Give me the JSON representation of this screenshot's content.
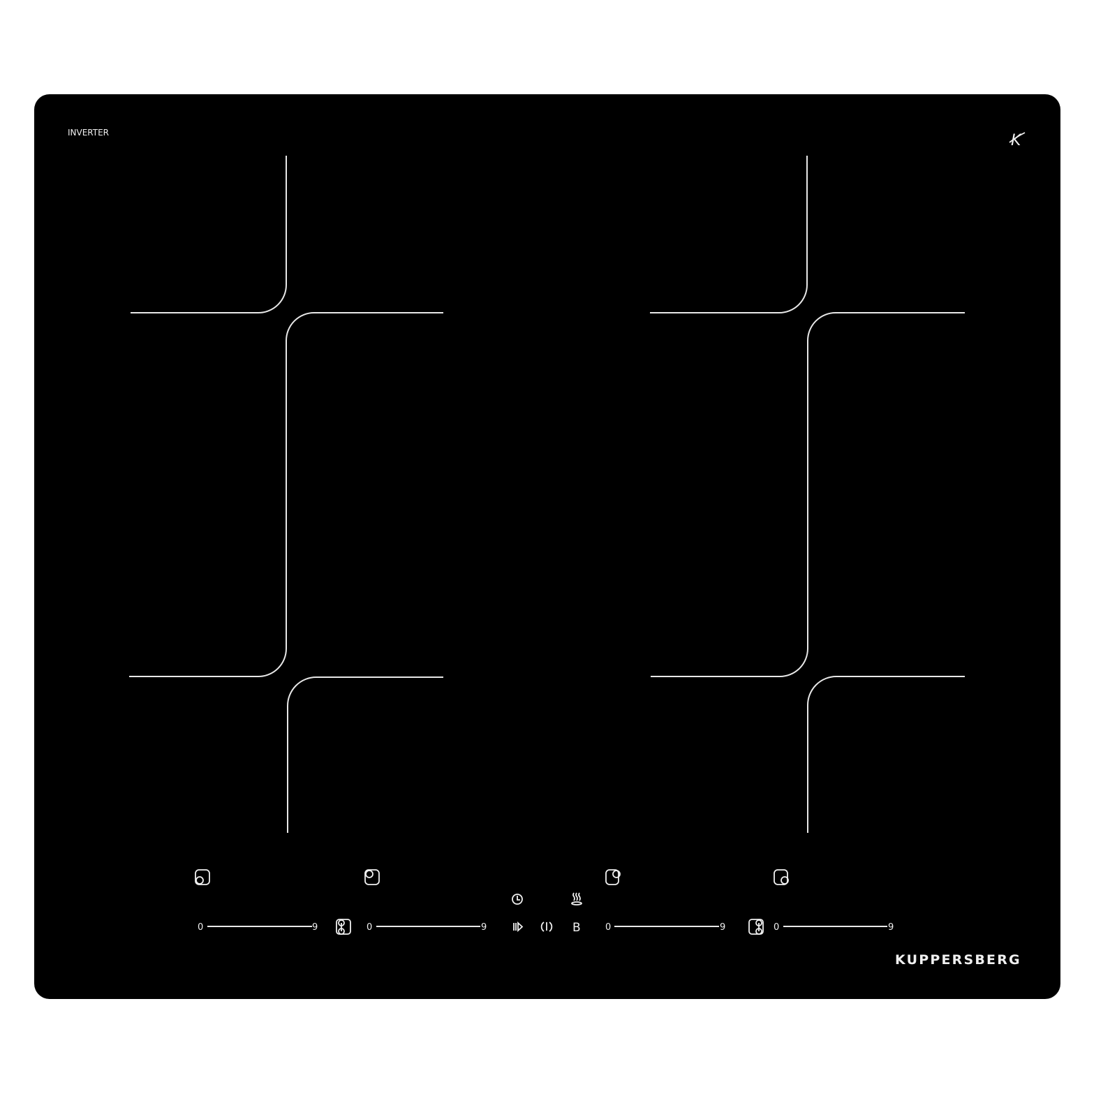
{
  "product": {
    "badge": "INVERTER",
    "brand": "KUPPERSBERG",
    "logo_letter": "K",
    "glass_color": "#000000",
    "line_color": "#e8e8e8"
  },
  "controls": {
    "zone_icons": [
      "zone-rear-left-icon",
      "zone-front-left-icon",
      "zone-rear-right-icon",
      "zone-front-right-icon"
    ],
    "sliders": [
      {
        "min_label": "0",
        "max_label": "9"
      },
      {
        "min_label": "0",
        "max_label": "9"
      },
      {
        "min_label": "0",
        "max_label": "9"
      },
      {
        "min_label": "0",
        "max_label": "9"
      }
    ],
    "bridge_icons": [
      "flex-zone-left-icon",
      "flex-zone-right-icon"
    ],
    "center": {
      "timer_icon": "clock-icon",
      "keep_warm_icon": "steam-icon",
      "pause_icon": "play-pause-icon",
      "power_icon": "power-icon",
      "boost_label": "B"
    }
  }
}
